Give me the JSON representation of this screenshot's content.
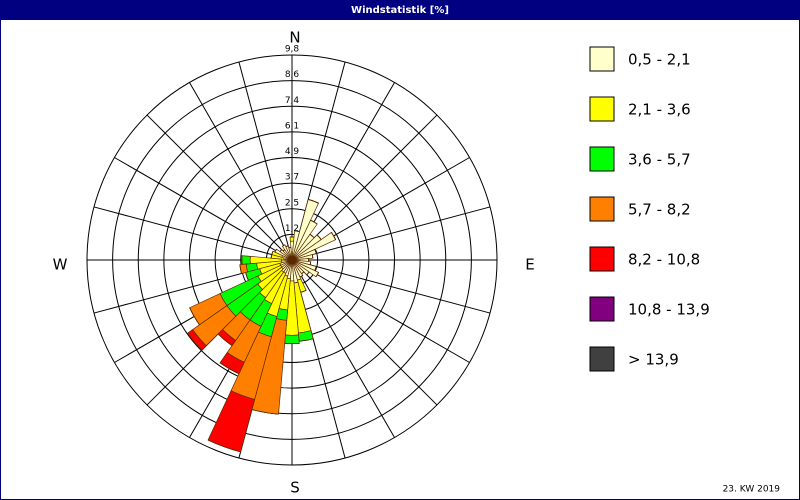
{
  "chart_data": {
    "type": "windrose",
    "title": "Windstatistik [%]",
    "footer": "23. KW 2019",
    "compass": [
      "N",
      "E",
      "S",
      "W"
    ],
    "directions": [
      0,
      10,
      20,
      30,
      40,
      50,
      60,
      70,
      80,
      90,
      100,
      110,
      120,
      130,
      140,
      150,
      160,
      170,
      180,
      190,
      200,
      210,
      220,
      230,
      240,
      250,
      260,
      270,
      280,
      290,
      300,
      310,
      320,
      330,
      340,
      350
    ],
    "rlim": [
      0,
      9.8
    ],
    "rticks": [
      {
        "value": 1.225,
        "label": "1,2"
      },
      {
        "value": 2.45,
        "label": "2,5"
      },
      {
        "value": 3.675,
        "label": "3,7"
      },
      {
        "value": 4.9,
        "label": "4,9"
      },
      {
        "value": 6.125,
        "label": "6,1"
      },
      {
        "value": 7.35,
        "label": "7,4"
      },
      {
        "value": 8.575,
        "label": "8,6"
      },
      {
        "value": 9.8,
        "label": "9,8"
      }
    ],
    "series": [
      {
        "name": "0,5 - 2,1",
        "color": "#ffffcc",
        "values": [
          0.9,
          1.4,
          3.0,
          2.1,
          1.5,
          1.7,
          2.3,
          1.2,
          1.0,
          0.8,
          0.9,
          1.2,
          1.4,
          1.0,
          0.8,
          0.9,
          1.0,
          1.1,
          1.0,
          0.9,
          0.8,
          0.7,
          0.7,
          0.6,
          0.6,
          0.6,
          0.5,
          0.5,
          0.4,
          0.5,
          0.9,
          0.7,
          0.6,
          0.8,
          0.7,
          0.6
        ]
      },
      {
        "name": "2,1 - 3,6",
        "color": "#ffff00",
        "values": [
          0.2,
          0,
          0,
          0,
          0,
          0,
          0,
          0,
          0,
          0,
          0,
          0,
          0,
          0,
          0,
          0,
          0.6,
          2.4,
          2.6,
          1.5,
          2.0,
          1.6,
          1.5,
          1.4,
          1.2,
          1.0,
          1.2,
          1.5,
          0.6,
          0.5,
          0,
          0,
          0,
          0,
          0,
          0
        ]
      },
      {
        "name": "3,6 - 5,7",
        "color": "#00ff00",
        "values": [
          0,
          0,
          0,
          0,
          0,
          0,
          0,
          0,
          0,
          0,
          0,
          0,
          0,
          0,
          0,
          0,
          0,
          0.4,
          0.4,
          0.5,
          1.0,
          1.2,
          1.3,
          1.8,
          2.0,
          0.7,
          0.5,
          0.4,
          0,
          0,
          0,
          0,
          0,
          0,
          0,
          0
        ]
      },
      {
        "name": "5,7 - 8,2",
        "color": "#ff8000",
        "values": [
          0,
          0,
          0,
          0,
          0,
          0,
          0,
          0,
          0,
          0,
          0,
          0,
          0,
          0,
          0,
          0,
          0,
          0,
          0,
          4.5,
          3.1,
          1.9,
          1.2,
          2.0,
          1.6,
          0,
          0.3,
          0,
          0,
          0,
          0,
          0,
          0,
          0,
          0,
          0
        ]
      },
      {
        "name": "8,2 - 10,8",
        "color": "#ff0000",
        "values": [
          0,
          0,
          0,
          0,
          0,
          0,
          0,
          0,
          0,
          0,
          0,
          0,
          0,
          0,
          0,
          0,
          0,
          0,
          0,
          0,
          2.6,
          0.6,
          0.3,
          0.3,
          0,
          0,
          0,
          0,
          0,
          0,
          0,
          0,
          0,
          0,
          0,
          0
        ]
      },
      {
        "name": "10,8 - 13,9",
        "color": "#800080",
        "values": [
          0,
          0,
          0,
          0,
          0,
          0,
          0,
          0,
          0,
          0,
          0,
          0,
          0,
          0,
          0,
          0,
          0,
          0,
          0,
          0,
          0,
          0,
          0,
          0,
          0,
          0,
          0,
          0,
          0,
          0,
          0,
          0,
          0,
          0,
          0,
          0
        ]
      },
      {
        "name": "> 13,9",
        "color": "#404040",
        "values": [
          0,
          0,
          0,
          0,
          0,
          0,
          0,
          0,
          0,
          0,
          0,
          0,
          0,
          0,
          0,
          0,
          0,
          0,
          0,
          0,
          0,
          0,
          0,
          0,
          0,
          0,
          0,
          0,
          0,
          0,
          0,
          0,
          0,
          0,
          0,
          0
        ]
      }
    ]
  }
}
